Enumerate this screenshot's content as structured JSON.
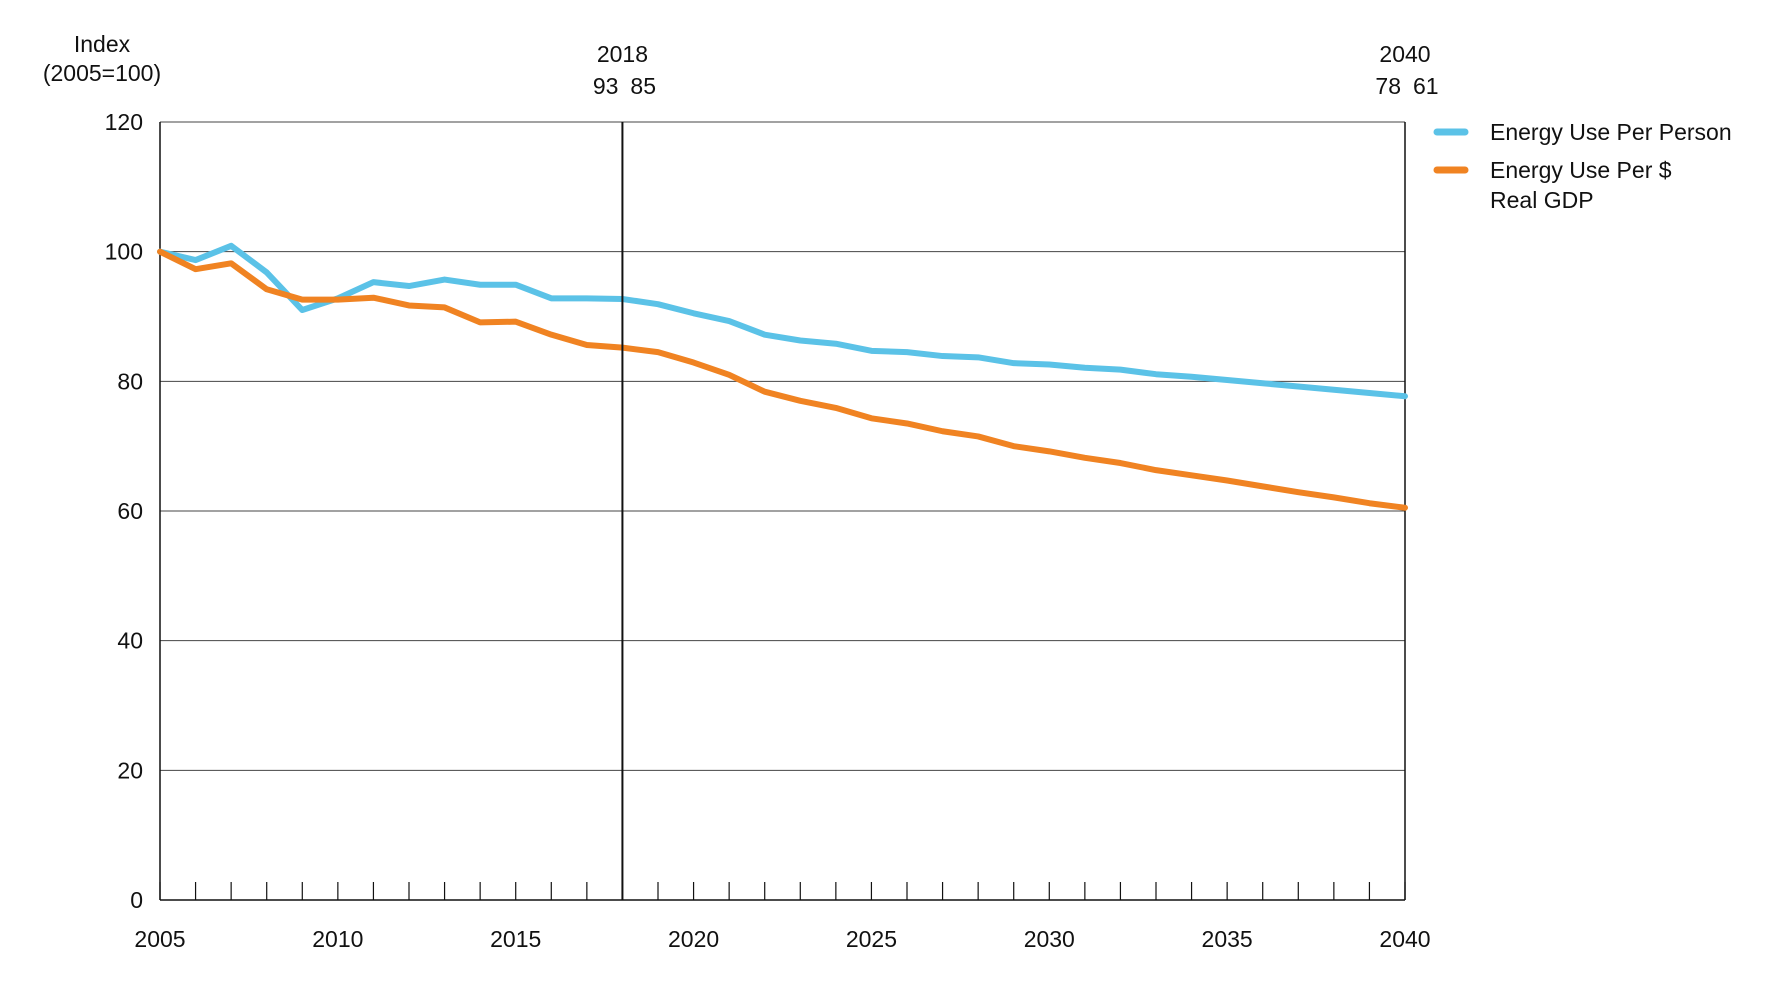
{
  "chart_data": {
    "type": "line",
    "ylabel_lines": [
      "Index",
      "(2005=100)"
    ],
    "x": [
      2005,
      2006,
      2007,
      2008,
      2009,
      2010,
      2011,
      2012,
      2013,
      2014,
      2015,
      2016,
      2017,
      2018,
      2019,
      2020,
      2021,
      2022,
      2023,
      2024,
      2025,
      2026,
      2027,
      2028,
      2029,
      2030,
      2031,
      2032,
      2033,
      2034,
      2035,
      2036,
      2037,
      2038,
      2039,
      2040
    ],
    "xlim": [
      2005,
      2040
    ],
    "ylim": [
      0,
      120
    ],
    "x_ticks": [
      "2005",
      "2010",
      "2015",
      "2020",
      "2025",
      "2030",
      "2035",
      "2040"
    ],
    "y_ticks": [
      "0",
      "20",
      "40",
      "60",
      "80",
      "100",
      "120"
    ],
    "grid": "horizontal",
    "legend_position": "right",
    "series": [
      {
        "name": "Energy Use Per Person",
        "color": "#5BC2E7",
        "values": [
          100.0,
          98.7,
          100.9,
          96.8,
          91.0,
          92.8,
          95.3,
          94.7,
          95.7,
          94.9,
          94.9,
          92.8,
          92.8,
          92.7,
          91.9,
          90.5,
          89.3,
          87.2,
          86.3,
          85.8,
          84.7,
          84.5,
          83.9,
          83.7,
          82.8,
          82.6,
          82.1,
          81.8,
          81.1,
          80.7,
          80.2,
          79.7,
          79.2,
          78.7,
          78.2,
          77.7
        ]
      },
      {
        "name": "Energy Use Per $ Real GDP",
        "name_lines": [
          "Energy Use Per $",
          "Real GDP"
        ],
        "color": "#F08322",
        "values": [
          100.0,
          97.3,
          98.2,
          94.2,
          92.6,
          92.6,
          92.9,
          91.7,
          91.4,
          89.1,
          89.2,
          87.2,
          85.6,
          85.2,
          84.5,
          82.9,
          81.0,
          78.4,
          77.0,
          75.9,
          74.3,
          73.5,
          72.3,
          71.5,
          70.0,
          69.2,
          68.2,
          67.4,
          66.3,
          65.5,
          64.7,
          63.8,
          62.9,
          62.1,
          61.2,
          60.5
        ]
      }
    ],
    "markers": [
      {
        "year": 2018,
        "label": "2018",
        "values": [
          "93",
          "85"
        ]
      },
      {
        "year": 2040,
        "label": "2040",
        "values": [
          "78",
          "61"
        ]
      }
    ]
  }
}
